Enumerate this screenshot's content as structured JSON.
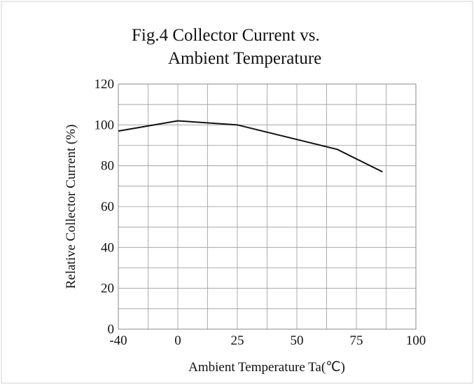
{
  "chart_data": {
    "type": "line",
    "title": [
      "Fig.4 Collector Current vs.",
      "Ambient Temperature"
    ],
    "xlabel": "Ambient Temperature Ta(℃)",
    "ylabel": "Relative Collector Current (%)",
    "x": [
      -40,
      0,
      25,
      67,
      86
    ],
    "series": [
      {
        "name": "Relative Collector Current",
        "color": "#111111",
        "values": [
          97,
          102,
          100,
          88,
          77
        ]
      }
    ],
    "xlim": [
      -40,
      100
    ],
    "xticks": [
      -40,
      0,
      25,
      50,
      75,
      100
    ],
    "x_minor_ticks": [
      -20,
      12.5,
      37.5,
      62.5,
      87.5
    ],
    "ylim": [
      0,
      120
    ],
    "yticks": [
      0,
      20,
      40,
      60,
      80,
      100,
      120
    ],
    "y_minor_ticks": [
      10,
      30,
      50,
      70,
      90,
      110
    ],
    "grid": true
  }
}
